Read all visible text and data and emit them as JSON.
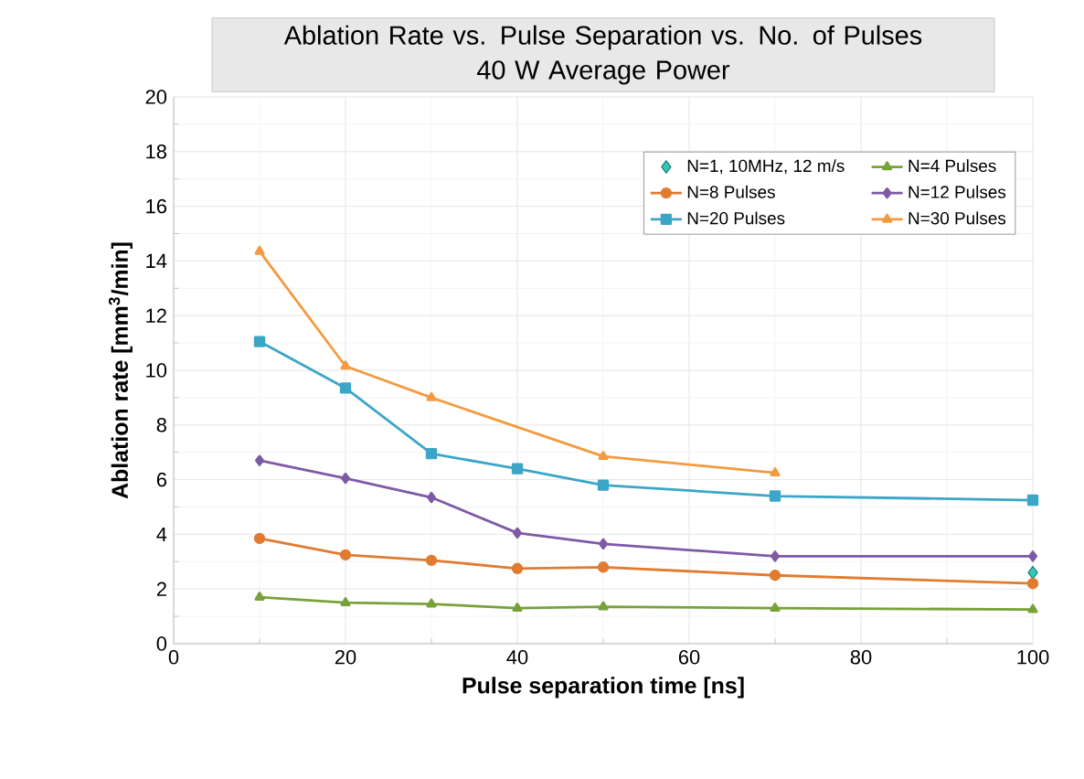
{
  "chart_data": {
    "type": "line",
    "title": "Ablation Rate vs. Pulse  Separation vs. No. of Pulses",
    "subtitle": "40 W Average Power",
    "xlabel": "Pulse separation time [ns]",
    "ylabel": "Ablation rate [mm$^{3}$/min]",
    "x": [
      10,
      20,
      30,
      40,
      50,
      70,
      100
    ],
    "xlim": [
      0,
      100
    ],
    "xticks": [
      0,
      20,
      40,
      60,
      80,
      100
    ],
    "ylim": [
      0,
      20
    ],
    "yticks": [
      0,
      2,
      4,
      6,
      8,
      10,
      12,
      14,
      16,
      18,
      20
    ],
    "grid": true,
    "legend": "top right",
    "series": [
      {
        "name": "N=1, 10MHz, 12 m/s",
        "type": "scatter",
        "marker": "diamond",
        "color": "#2ec9b8",
        "x": [
          100
        ],
        "values": [
          2.6
        ]
      },
      {
        "name": "N=4 Pulses",
        "marker": "triangle",
        "color": "#77a23a",
        "values": [
          1.7,
          1.5,
          1.45,
          1.3,
          1.35,
          1.3,
          1.25
        ]
      },
      {
        "name": "N=8 Pulses",
        "marker": "circle",
        "color": "#e07b30",
        "values": [
          3.85,
          3.25,
          3.05,
          2.75,
          2.8,
          2.5,
          2.2
        ]
      },
      {
        "name": "N=12 Pulses",
        "marker": "diamond",
        "color": "#7e5aa6",
        "values": [
          6.7,
          6.05,
          5.35,
          4.05,
          3.65,
          3.2,
          3.2
        ]
      },
      {
        "name": "N=20 Pulses",
        "marker": "square",
        "color": "#3ba6c6",
        "values": [
          11.05,
          9.35,
          6.95,
          6.4,
          5.8,
          5.4,
          5.25
        ]
      },
      {
        "name": "N=30 Pulses",
        "marker": "triangle",
        "color": "#f49a40",
        "x": [
          10,
          20,
          30,
          50,
          70
        ],
        "values": [
          14.35,
          10.15,
          9.0,
          6.85,
          6.25
        ]
      }
    ]
  }
}
